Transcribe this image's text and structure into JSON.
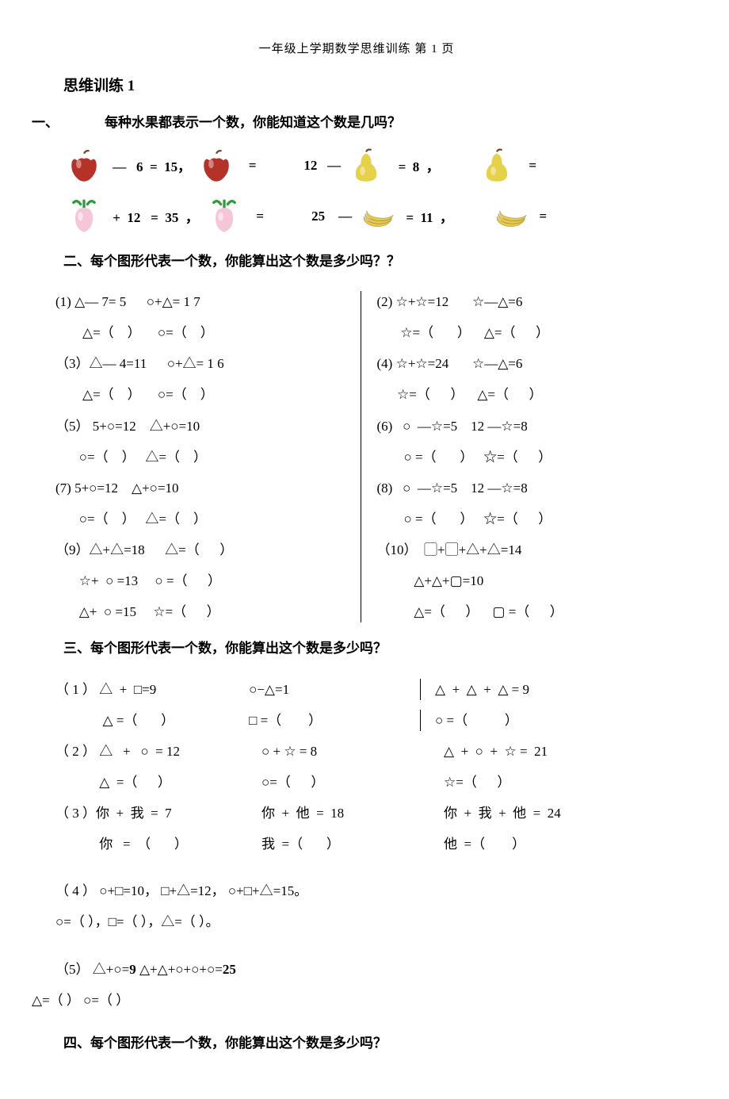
{
  "header": {
    "text": "一年级上学期数学思维训练     第 1 页"
  },
  "title": "思维训练 1",
  "section1": {
    "num": "一、",
    "prompt": "每种水果都表示一个数，你能知道这个数是几吗？",
    "row1": {
      "e1": " —   6  =  15，",
      "e2": "  =",
      "e3": "12   —",
      "e4": "  =  8  ，",
      "e5": "  ="
    },
    "row2": {
      "e1": " +  12   =  35  ，",
      "e2": "  =",
      "e3": "25    —",
      "e4": " =  11  ，",
      "e5": " ="
    },
    "fruit_colors": {
      "apple_fill": "#b43228",
      "apple_stem": "#6b4a2a",
      "pear_fill": "#e6d24a",
      "pear_stem": "#6b4a2a",
      "radish_fill": "#f5c6d8",
      "radish_leaf": "#2f9b3f",
      "banana_fill": "#e9c94a",
      "banana_shadow": "#8a7a2a"
    }
  },
  "section2": {
    "head": "二、每个图形代表一个数，你能算出这个数是多少吗？？",
    "left": [
      "(1) △— 7= 5      ○+△= 1 7",
      "        △=（    ）     ○=（    ）",
      "（3）△— 4=11      ○+△= 1 6",
      "        △=（    ）     ○=（    ）",
      "（5） 5+○=12    △+○=10",
      "       ○=（    ）   △=（    ）",
      "(7) 5+○=12    △+○=10",
      "       ○=（    ）   △=（    ）",
      "（9）△+△=18      △=（      ）",
      "       ☆+  ○ =13     ○ =（      ）",
      "       △+  ○ =15     ☆=（      ）"
    ],
    "right": [
      "(2) ☆+☆=12       ☆—△=6",
      "       ☆=（       ）    △=（      ）",
      "(4) ☆+☆=24       ☆—△=6",
      "      ☆=（      ）    △=（      ）",
      "(6)   ○  —☆=5    12 —☆=8",
      "        ○ =（       ）   ☆=（      ）",
      "(8)   ○  —☆=5    12 —☆=8",
      "        ○ =（       ）   ☆=（      ）",
      "（10）  ▢+▢+△+△=14",
      "           △+△+▢=10",
      "           △=（      ）    ▢ =（      ）"
    ]
  },
  "section3": {
    "head": "三、每个图形代表一个数，你能算出这个数是多少吗？",
    "rows": [
      {
        "a": "（ 1 ） △  +  □=9",
        "b": "○−△=1",
        "c": "△  +  △  +  △ = 9",
        "div": true
      },
      {
        "a": "              △ =（       ）",
        "b": "□ =（        ）",
        "c": "○ =（           ）",
        "div": true
      },
      {
        "a": "（ 2 ） △   +   ○  = 12",
        "b": "○ + ☆ = 8",
        "c": "△  +  ○  +  ☆ =  21"
      },
      {
        "a": "             △  =（      ）",
        "b": "○=（      ）",
        "c": "☆=（      ）"
      },
      {
        "a": "（ 3 ）你  +  我  =  7",
        "b": "你  +  他  =  18",
        "c": "你  +  我  +  他  =  24"
      },
      {
        "a": "             你   =  （       ）",
        "b": "我  =（       ）",
        "c": "他  =（        ）"
      }
    ],
    "p4_l1": "（  4  ）    ○+□=10，     □+△=12，     ○+□+△=15。",
    "p4_l2": "              ○=（         ），□=（         ），△=（         ）。",
    "p5_l1_a": "（5）   △+○=",
    "p5_l1_b": "9",
    "p5_l1_c": "            △+△+○+○+○=",
    "p5_l1_d": "25",
    "p5_l2": "△=（       ）     ○=（     ）"
  },
  "section4": {
    "head": "四、每个图形代表一个数，你能算出这个数是多少吗？"
  }
}
